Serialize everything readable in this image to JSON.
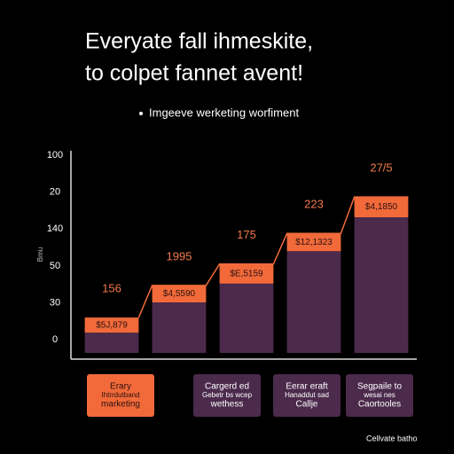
{
  "chart_data": {
    "type": "stacked_bar",
    "title": [
      "Everyate fall ihmeskite,",
      "to colpet fannet avent!"
    ],
    "y_label": "Bmu",
    "ylim": [
      -0.36,
      5.1
    ],
    "yticks": [
      {
        "value": 0,
        "label": "0"
      },
      {
        "value": 1,
        "label": "30"
      },
      {
        "value": 2,
        "label": "50"
      },
      {
        "value": 3,
        "label": "140"
      },
      {
        "value": 4,
        "label": "20"
      },
      {
        "value": 5,
        "label": "100"
      }
    ],
    "series": [
      {
        "name": "Imgeeve werketing worfiment",
        "color": "#4b2a4c",
        "values": [
          0.55,
          1.37,
          1.88,
          2.76,
          3.68
        ]
      },
      {
        "color": "#f26a3a",
        "values": [
          0.41,
          0.46,
          0.53,
          0.48,
          0.55
        ],
        "value_labels": [
          "$5J,879",
          "$4,5590",
          "$E,5159",
          "$12,1323",
          "$4,1850"
        ]
      }
    ],
    "top_labels": [
      "156",
      "1995",
      "175",
      "223",
      "27/5"
    ],
    "annotations": [
      [
        "Erary",
        "Ihtrrdutband",
        "marketing"
      ],
      [
        "Cargerd ed",
        "Gebetr bs wcep",
        "wethess"
      ],
      [
        "Eerar eraft",
        "Hanaddut sad",
        "Callje"
      ],
      [
        "Segpaile to",
        "wesai nes",
        "Caortooles"
      ]
    ],
    "footer": "Cellvate batho"
  }
}
